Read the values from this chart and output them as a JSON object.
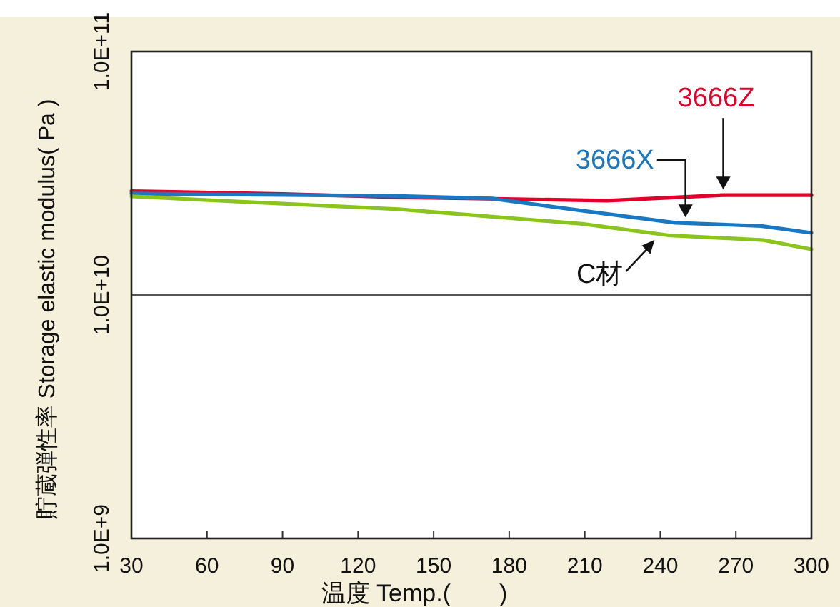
{
  "chart_data": {
    "type": "line",
    "xlabel": "温度 Temp.(　　)",
    "ylabel": "貯蔵弾性率 Storage elastic modulus( Pa )",
    "log": "y",
    "xlim": [
      30,
      300
    ],
    "xticks": [
      30,
      60,
      90,
      120,
      150,
      180,
      210,
      240,
      270,
      300
    ],
    "ylim": [
      1000000000,
      100000000000
    ],
    "yticks": [
      {
        "value": 1000000000,
        "label": "1.0E+9"
      },
      {
        "value": 10000000000,
        "label": "1.0E+10"
      },
      {
        "value": 100000000000,
        "label": "1.0E+11"
      }
    ],
    "grid": "y",
    "marker": "none",
    "line_style": "solid",
    "series": [
      {
        "name": "3666Z",
        "color": "#e0002a",
        "x": [
          30,
          90,
          136,
          219,
          265,
          300
        ],
        "values": [
          26700000000,
          26000000000,
          25200000000,
          24400000000,
          25700000000,
          25700000000
        ]
      },
      {
        "name": "3666X",
        "color": "#1a78c2",
        "x": [
          30,
          136,
          173,
          219,
          246,
          280,
          300
        ],
        "values": [
          26100000000,
          25500000000,
          24900000000,
          21500000000,
          19800000000,
          19200000000,
          18000000000
        ]
      },
      {
        "name": "C材",
        "color": "#8cc41e",
        "x": [
          30,
          136,
          209,
          243,
          281,
          300
        ],
        "values": [
          25400000000,
          22500000000,
          19600000000,
          17600000000,
          16800000000,
          15400000000
        ]
      }
    ]
  }
}
